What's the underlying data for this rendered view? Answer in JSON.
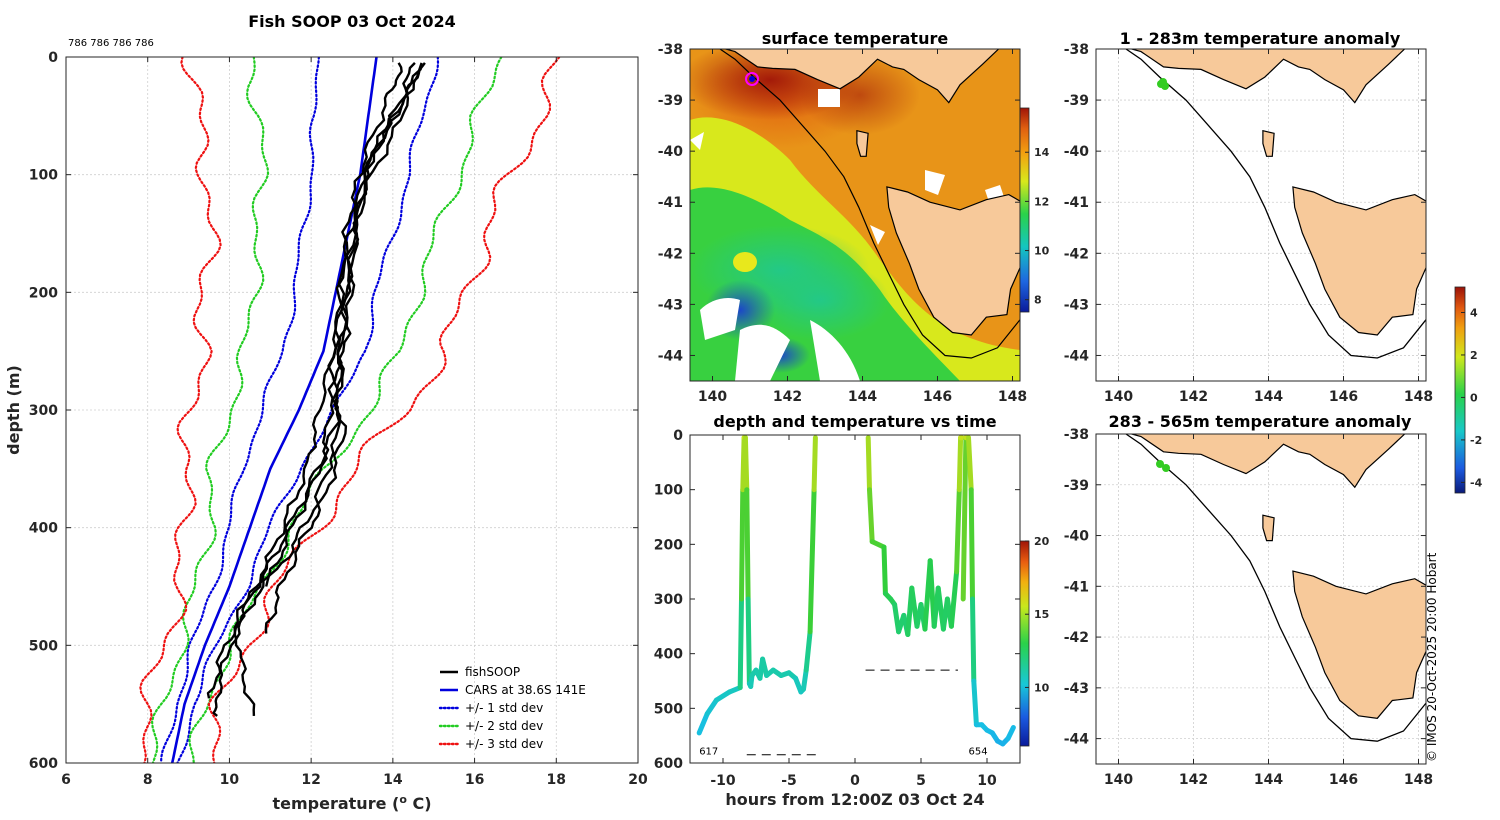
{
  "chart_data": [
    {
      "id": "profile",
      "type": "line",
      "title": "Fish SOOP 03 Oct 2024",
      "profile_ids": "786 786 786 786",
      "xlabel": "temperature (",
      "xlabel_sup": "o",
      "xlabel_tail": " C)",
      "ylabel": "depth (m)",
      "xlim": [
        6,
        20
      ],
      "ylim": [
        600,
        0
      ],
      "xticks": [
        "6",
        "8",
        "10",
        "12",
        "14",
        "16",
        "18",
        "20"
      ],
      "yticks": [
        "0",
        "100",
        "200",
        "300",
        "400",
        "500",
        "600"
      ],
      "legend_position": "bottom-right",
      "legend": [
        {
          "label": "fishSOOP",
          "color": "#000000",
          "style": "solid"
        },
        {
          "label": "CARS at 38.6S 141E",
          "color": "#0000dd",
          "style": "solid"
        },
        {
          "label": "+/- 1 std dev",
          "color": "#0000dd",
          "style": "dotted"
        },
        {
          "label": "+/- 2 std dev",
          "color": "#22cc22",
          "style": "dotted"
        },
        {
          "label": "+/- 3 std dev",
          "color": "#ee1111",
          "style": "dotted"
        }
      ],
      "cars_mean": {
        "depth": [
          0,
          25,
          50,
          100,
          150,
          200,
          250,
          300,
          350,
          400,
          450,
          500,
          550,
          600
        ],
        "temp": [
          13.6,
          13.5,
          13.4,
          13.2,
          12.9,
          12.6,
          12.3,
          11.7,
          11.0,
          10.5,
          10.0,
          9.4,
          8.9,
          8.6
        ]
      },
      "std_offsets": {
        "depth": [
          0,
          25,
          50,
          100,
          150,
          200,
          250,
          300,
          350,
          400,
          450,
          500,
          550,
          600
        ],
        "one": [
          1.5,
          1.4,
          1.3,
          1.2,
          1.1,
          1.0,
          1.0,
          0.9,
          0.7,
          0.5,
          0.4,
          0.3,
          0.2,
          0.2
        ],
        "two": [
          3.0,
          2.9,
          2.7,
          2.4,
          2.2,
          2.0,
          1.9,
          1.7,
          1.4,
          1.0,
          0.8,
          0.6,
          0.5,
          0.5
        ],
        "three": [
          4.5,
          4.4,
          4.2,
          3.7,
          3.4,
          3.2,
          3.0,
          2.6,
          2.1,
          1.6,
          1.2,
          1.0,
          0.9,
          0.9
        ]
      },
      "fish_profiles": [
        {
          "depth": [
            5,
            30,
            80,
            150,
            220,
            280,
            330,
            380,
            420,
            460,
            500,
            540,
            560
          ],
          "temp": [
            14.7,
            14.4,
            13.5,
            13.1,
            12.9,
            12.7,
            12.6,
            12.1,
            11.5,
            10.6,
            10.0,
            9.7,
            9.7
          ]
        },
        {
          "depth": [
            5,
            40,
            90,
            160,
            230,
            290,
            340,
            390,
            430,
            470,
            510,
            545
          ],
          "temp": [
            14.5,
            14.2,
            13.4,
            13.0,
            12.8,
            12.5,
            12.3,
            11.6,
            11.0,
            10.3,
            9.8,
            9.5
          ]
        },
        {
          "depth": [
            5,
            50,
            100,
            170,
            240,
            300,
            350,
            400,
            440,
            480,
            520,
            560
          ],
          "temp": [
            14.8,
            14.0,
            13.3,
            12.8,
            12.6,
            12.2,
            11.9,
            11.3,
            10.8,
            10.2,
            10.3,
            10.6
          ]
        },
        {
          "depth": [
            5,
            35,
            85,
            140,
            210,
            270,
            320,
            370,
            410,
            455,
            490
          ],
          "temp": [
            14.2,
            13.9,
            13.3,
            12.9,
            12.7,
            12.5,
            12.8,
            12.4,
            11.8,
            11.2,
            10.9
          ]
        },
        {
          "depth": [
            10,
            60,
            120,
            190,
            260,
            310,
            360,
            410,
            450
          ],
          "temp": [
            14.6,
            14.1,
            13.2,
            12.9,
            12.7,
            12.6,
            12.1,
            11.4,
            10.9
          ]
        }
      ]
    },
    {
      "id": "sst_map",
      "type": "heatmap",
      "title": "surface temperature",
      "xlim": [
        139.4,
        148.2
      ],
      "ylim": [
        -44.5,
        -38
      ],
      "xticks": [
        "140",
        "142",
        "144",
        "146",
        "148"
      ],
      "yticks": [
        "-38",
        "-39",
        "-40",
        "-41",
        "-42",
        "-43",
        "-44"
      ],
      "colorbar_ticks": [
        "8",
        "10",
        "12",
        "14"
      ],
      "colorbar_range": [
        7.5,
        15.8
      ]
    },
    {
      "id": "depth_time",
      "type": "scatter",
      "title": "depth and temperature vs time",
      "xlabel": "hours from 12:00Z 03 Oct 24",
      "xlim": [
        -12.5,
        12.5
      ],
      "ylim": [
        600,
        0
      ],
      "xticks": [
        "-10",
        "-5",
        "0",
        "5",
        "10"
      ],
      "yticks": [
        "0",
        "100",
        "200",
        "300",
        "400",
        "500",
        "600"
      ],
      "colorbar_ticks": [
        "10",
        "15",
        "20"
      ],
      "colorbar_range": [
        6,
        20
      ],
      "annotations": [
        {
          "text": "617",
          "x": -11.8,
          "y": 590
        },
        {
          "text": "654",
          "x": 8.6,
          "y": 590
        }
      ],
      "segments": [
        {
          "t": [
            -11.8,
            -11.2,
            -10.5,
            -9.5,
            -8.7,
            -8.6,
            -8.5,
            -8.4,
            -8.3,
            -8.2,
            -8.1,
            -8.0,
            -7.9,
            -7.8,
            -7.5,
            -7.2,
            -7.0,
            -6.7,
            -6.2,
            -5.6,
            -5.0,
            -4.5,
            -4.1,
            -3.9,
            -3.7,
            -3.4,
            -3.1,
            -3.0
          ],
          "d": [
            545,
            510,
            485,
            470,
            462,
            300,
            100,
            5,
            5,
            100,
            300,
            455,
            460,
            440,
            430,
            445,
            410,
            440,
            430,
            440,
            435,
            445,
            470,
            465,
            430,
            360,
            100,
            5
          ]
        },
        {
          "t": [
            1.0,
            1.1,
            1.3,
            2.2,
            2.3,
            2.7,
            3.0,
            3.3,
            3.7,
            4.0,
            4.3,
            4.7,
            5.0,
            5.3,
            5.7,
            6.0,
            6.3,
            6.7,
            7.0,
            7.3,
            7.7,
            7.9,
            8.0,
            8.1
          ],
          "d": [
            5,
            100,
            195,
            205,
            290,
            300,
            310,
            360,
            330,
            365,
            280,
            350,
            310,
            355,
            230,
            350,
            280,
            355,
            300,
            350,
            250,
            100,
            5,
            5
          ]
        },
        {
          "t": [
            8.2,
            8.4,
            8.6,
            8.8,
            8.9,
            9.0,
            9.2,
            9.6,
            10.0,
            10.4,
            10.8,
            11.2,
            11.6,
            12.0
          ],
          "d": [
            300,
            5,
            5,
            100,
            300,
            450,
            530,
            530,
            540,
            545,
            560,
            565,
            555,
            535
          ]
        }
      ],
      "dashed_lines": [
        {
          "t": [
            -8.2,
            -2.8
          ],
          "d": 585
        },
        {
          "t": [
            0.8,
            7.8
          ],
          "d": 430
        }
      ]
    },
    {
      "id": "anom_upper",
      "type": "heatmap",
      "title": "1 - 283m temperature anomaly",
      "xlim": [
        139.4,
        148.2
      ],
      "ylim": [
        -44.5,
        -38
      ],
      "xticks": [
        "140",
        "142",
        "144",
        "146",
        "148"
      ],
      "yticks": [
        "-38",
        "-39",
        "-40",
        "-41",
        "-42",
        "-43",
        "-44"
      ]
    },
    {
      "id": "anom_lower",
      "type": "heatmap",
      "title": "283 - 565m temperature anomaly",
      "xlim": [
        139.4,
        148.2
      ],
      "ylim": [
        -44.5,
        -38
      ],
      "xticks": [
        "140",
        "142",
        "144",
        "146",
        "148"
      ],
      "yticks": [
        "-38",
        "-39",
        "-40",
        "-41",
        "-42",
        "-43",
        "-44"
      ]
    },
    {
      "id": "anom_colorbar",
      "type": "heatmap",
      "colorbar_ticks": [
        "4",
        "2",
        "0",
        "-2",
        "-4"
      ],
      "colorbar_range": [
        -4.5,
        5.2
      ]
    }
  ],
  "credit": "© IMOS 20-Oct-2025 20:00 Hobart",
  "colors": {
    "land": "#f7c99a",
    "fish": "#000000",
    "cars": "#0000dd",
    "std1": "#0000dd",
    "std2": "#22cc22",
    "std3": "#ee1111",
    "boat": "#ff00ff"
  }
}
